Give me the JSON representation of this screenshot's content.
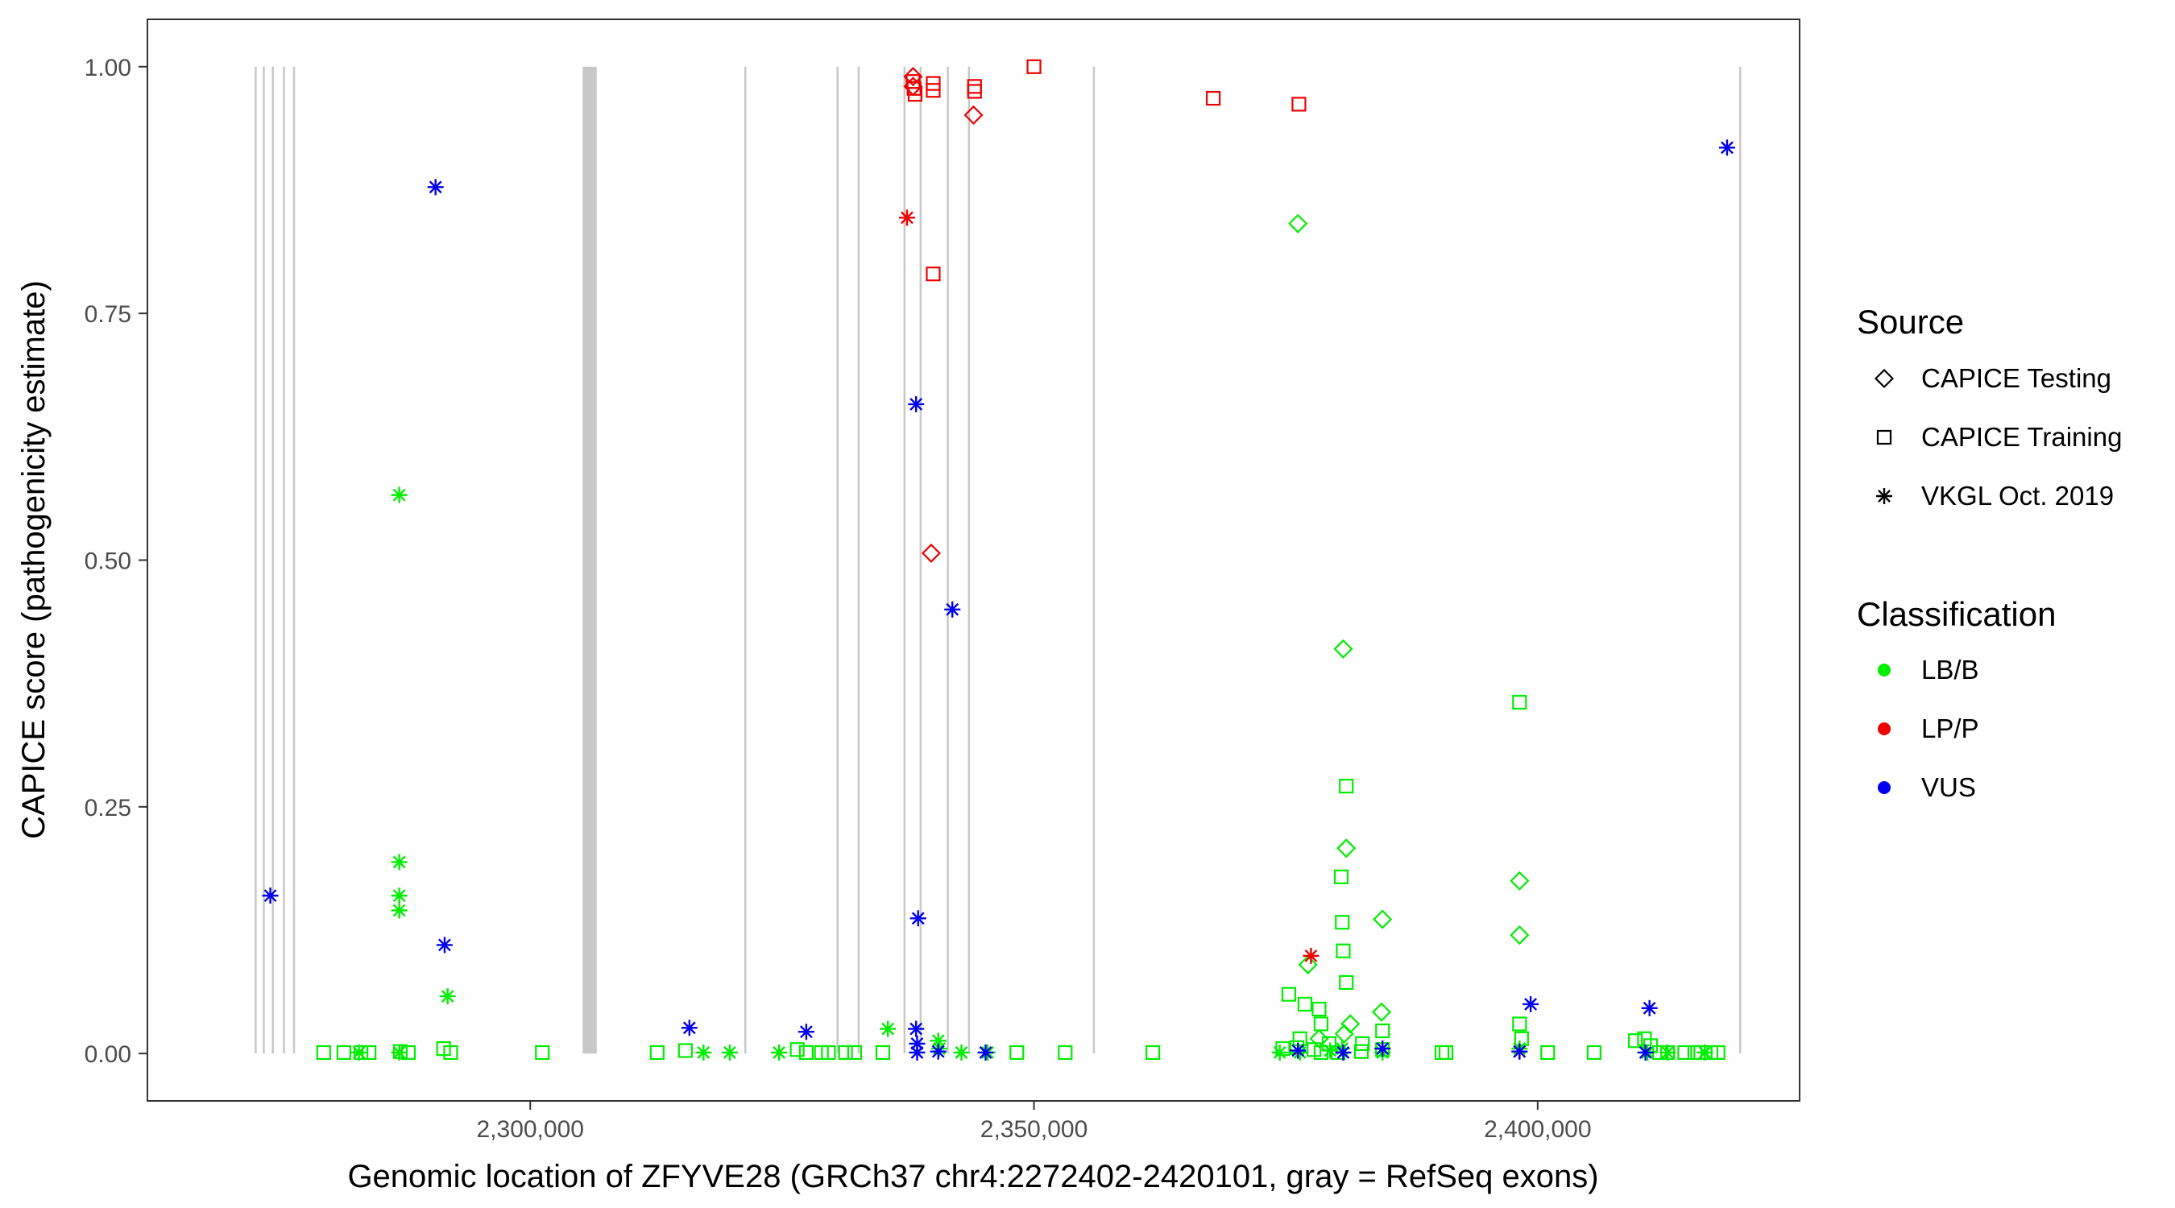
{
  "chart_data": {
    "type": "scatter",
    "xlabel": "Genomic location of ZFYVE28 (GRCh37 chr4:2272402-2420101, gray = RefSeq exons)",
    "ylabel": "CAPICE score (pathogenicity estimate)",
    "xlim": [
      2262000,
      2426000
    ],
    "ylim": [
      -0.048,
      1.048
    ],
    "grid": false,
    "legend_position": "right",
    "x_ticks": [
      {
        "value": 2300000,
        "label": "2,300,000"
      },
      {
        "value": 2350000,
        "label": "2,350,000"
      },
      {
        "value": 2400000,
        "label": "2,400,000"
      }
    ],
    "y_ticks": [
      {
        "value": 0.0,
        "label": "0.00"
      },
      {
        "value": 0.25,
        "label": "0.25"
      },
      {
        "value": 0.5,
        "label": "0.50"
      },
      {
        "value": 0.75,
        "label": "0.75"
      },
      {
        "value": 1.0,
        "label": "1.00"
      }
    ],
    "exons": [
      {
        "start": 2272650,
        "end": 2272850
      },
      {
        "start": 2273450,
        "end": 2273650
      },
      {
        "start": 2274350,
        "end": 2274550
      },
      {
        "start": 2275450,
        "end": 2275650
      },
      {
        "start": 2276450,
        "end": 2276650
      },
      {
        "start": 2305200,
        "end": 2306600
      },
      {
        "start": 2321250,
        "end": 2321450
      },
      {
        "start": 2330400,
        "end": 2330600
      },
      {
        "start": 2332500,
        "end": 2332700
      },
      {
        "start": 2337050,
        "end": 2337250
      },
      {
        "start": 2338650,
        "end": 2338850
      },
      {
        "start": 2341350,
        "end": 2341550
      },
      {
        "start": 2343450,
        "end": 2343650
      },
      {
        "start": 2355850,
        "end": 2356050
      },
      {
        "start": 2420000,
        "end": 2420200
      }
    ],
    "legend": {
      "source_title": "Source",
      "source_items": [
        {
          "label": "CAPICE Testing",
          "shape": "diamond"
        },
        {
          "label": "CAPICE Training",
          "shape": "square"
        },
        {
          "label": "VKGL Oct. 2019",
          "shape": "asterisk"
        }
      ],
      "class_title": "Classification",
      "class_items": [
        {
          "label": "LB/B",
          "color": "#00ee00"
        },
        {
          "label": "LP/P",
          "color": "#ee0000"
        },
        {
          "label": "VUS",
          "color": "#0000ee"
        }
      ]
    },
    "series": [
      {
        "source": "CAPICE Testing",
        "classification": "LB/B",
        "points": [
          [
            2376200,
            0.841
          ],
          [
            2380700,
            0.41
          ],
          [
            2398200,
            0.175
          ],
          [
            2398200,
            0.12
          ],
          [
            2384600,
            0.136
          ],
          [
            2381000,
            0.208
          ],
          [
            2377200,
            0.09
          ],
          [
            2384500,
            0.042
          ],
          [
            2381400,
            0.03
          ],
          [
            2378300,
            0.015
          ],
          [
            2380800,
            0.02
          ]
        ]
      },
      {
        "source": "CAPICE Testing",
        "classification": "LP/P",
        "points": [
          [
            2338000,
            0.99
          ],
          [
            2338000,
            0.98
          ],
          [
            2344000,
            0.951
          ],
          [
            2339800,
            0.507
          ]
        ]
      },
      {
        "source": "CAPICE Training",
        "classification": "LB/B",
        "points": [
          [
            2279500,
            0.001
          ],
          [
            2281500,
            0.001
          ],
          [
            2283200,
            0.001
          ],
          [
            2284000,
            0.001
          ],
          [
            2287100,
            0.002
          ],
          [
            2287900,
            0.001
          ],
          [
            2291400,
            0.005
          ],
          [
            2292100,
            0.001
          ],
          [
            2301200,
            0.001
          ],
          [
            2312600,
            0.001
          ],
          [
            2315400,
            0.003
          ],
          [
            2326500,
            0.004
          ],
          [
            2327400,
            0.001
          ],
          [
            2328900,
            0.001
          ],
          [
            2329600,
            0.001
          ],
          [
            2331300,
            0.001
          ],
          [
            2332200,
            0.001
          ],
          [
            2335000,
            0.001
          ],
          [
            2348300,
            0.001
          ],
          [
            2353100,
            0.001
          ],
          [
            2361800,
            0.001
          ],
          [
            2375300,
            0.06
          ],
          [
            2376900,
            0.05
          ],
          [
            2378300,
            0.045
          ],
          [
            2378500,
            0.03
          ],
          [
            2380500,
            0.179
          ],
          [
            2380600,
            0.133
          ],
          [
            2380700,
            0.104
          ],
          [
            2381000,
            0.271
          ],
          [
            2381000,
            0.072
          ],
          [
            2384600,
            0.023
          ],
          [
            2376400,
            0.015
          ],
          [
            2379300,
            0.01
          ],
          [
            2374700,
            0.005
          ],
          [
            2376100,
            0.006
          ],
          [
            2382500,
            0.002
          ],
          [
            2384600,
            0.004
          ],
          [
            2390500,
            0.001
          ],
          [
            2390900,
            0.001
          ],
          [
            2398200,
            0.356
          ],
          [
            2398200,
            0.03
          ],
          [
            2398400,
            0.015
          ],
          [
            2401000,
            0.001
          ],
          [
            2405600,
            0.001
          ],
          [
            2409700,
            0.013
          ],
          [
            2410600,
            0.015
          ],
          [
            2411200,
            0.008
          ],
          [
            2412100,
            0.001
          ],
          [
            2412900,
            0.001
          ],
          [
            2414600,
            0.001
          ],
          [
            2415600,
            0.001
          ],
          [
            2416200,
            0.001
          ],
          [
            2417200,
            0.001
          ],
          [
            2417900,
            0.001
          ],
          [
            2378500,
            0.001
          ],
          [
            2380200,
            0.001
          ],
          [
            2377800,
            0.004
          ],
          [
            2382600,
            0.01
          ]
        ]
      },
      {
        "source": "CAPICE Training",
        "classification": "LP/P",
        "points": [
          [
            2338000,
            0.985
          ],
          [
            2338100,
            0.978
          ],
          [
            2338200,
            0.972
          ],
          [
            2340000,
            0.983
          ],
          [
            2340000,
            0.976
          ],
          [
            2344100,
            0.98
          ],
          [
            2344100,
            0.975
          ],
          [
            2350000,
            1.0
          ],
          [
            2367800,
            0.968
          ],
          [
            2376300,
            0.962
          ],
          [
            2340000,
            0.79
          ]
        ]
      },
      {
        "source": "VKGL Oct. 2019",
        "classification": "LB/B",
        "points": [
          [
            2287000,
            0.566
          ],
          [
            2287000,
            0.194
          ],
          [
            2287000,
            0.16
          ],
          [
            2287000,
            0.145
          ],
          [
            2291800,
            0.058
          ],
          [
            2283000,
            0.001
          ],
          [
            2287000,
            0.001
          ],
          [
            2317200,
            0.001
          ],
          [
            2319800,
            0.001
          ],
          [
            2324700,
            0.001
          ],
          [
            2335500,
            0.025
          ],
          [
            2340500,
            0.013
          ],
          [
            2340600,
            0.005
          ],
          [
            2342800,
            0.001
          ],
          [
            2345400,
            0.001
          ],
          [
            2374400,
            0.001
          ],
          [
            2379400,
            0.003
          ],
          [
            2380600,
            0.005
          ],
          [
            2384600,
            0.001
          ],
          [
            2398200,
            0.005
          ],
          [
            2410900,
            0.001
          ],
          [
            2412900,
            0.001
          ],
          [
            2416600,
            0.001
          ],
          [
            2376400,
            0.001
          ]
        ]
      },
      {
        "source": "VKGL Oct. 2019",
        "classification": "LP/P",
        "points": [
          [
            2337400,
            0.847
          ],
          [
            2377500,
            0.099
          ],
          [
            2398200,
            0.002
          ]
        ]
      },
      {
        "source": "VKGL Oct. 2019",
        "classification": "VUS",
        "points": [
          [
            2290600,
            0.878
          ],
          [
            2274200,
            0.16
          ],
          [
            2291500,
            0.11
          ],
          [
            2338300,
            0.658
          ],
          [
            2341900,
            0.45
          ],
          [
            2338500,
            0.137
          ],
          [
            2315800,
            0.026
          ],
          [
            2327400,
            0.022
          ],
          [
            2338300,
            0.025
          ],
          [
            2338400,
            0.01
          ],
          [
            2338400,
            0.001
          ],
          [
            2340500,
            0.002
          ],
          [
            2345200,
            0.001
          ],
          [
            2376200,
            0.003
          ],
          [
            2380700,
            0.001
          ],
          [
            2384600,
            0.005
          ],
          [
            2398200,
            0.002
          ],
          [
            2399300,
            0.05
          ],
          [
            2410700,
            0.001
          ],
          [
            2411100,
            0.046
          ],
          [
            2418800,
            0.918
          ]
        ]
      }
    ]
  }
}
